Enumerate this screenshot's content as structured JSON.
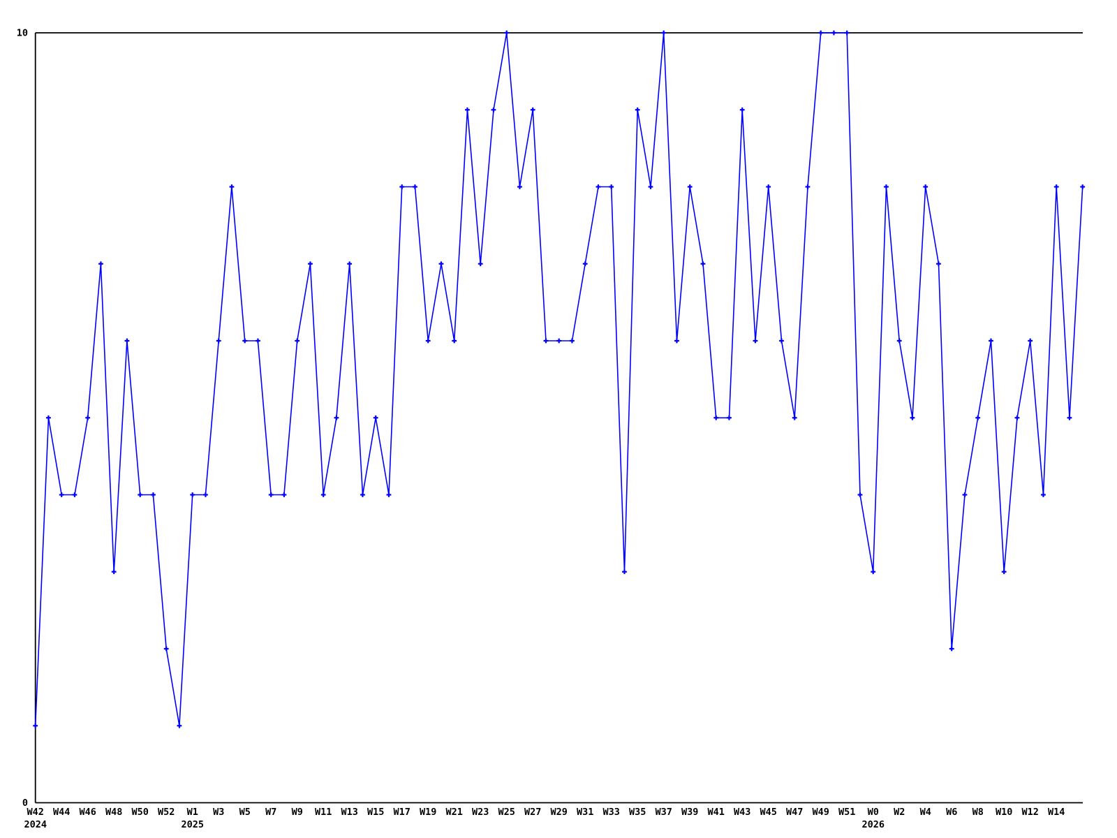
{
  "chart_data": {
    "type": "line",
    "title": "",
    "xlabel": "",
    "ylabel": "",
    "ylim": [
      0,
      10
    ],
    "grid": false,
    "legend": "none",
    "line_color": "#0000ff",
    "axis_color": "#000000",
    "background_color": "#ffffff",
    "marker_style": "plus",
    "y_tick_labels": [
      {
        "label": "0",
        "value": 0
      },
      {
        "label": "10",
        "value": 10
      }
    ],
    "x_tick_labels": [
      {
        "label": "W42",
        "index": 0,
        "year": "2024"
      },
      {
        "label": "W44",
        "index": 2
      },
      {
        "label": "W46",
        "index": 4
      },
      {
        "label": "W48",
        "index": 6
      },
      {
        "label": "W50",
        "index": 8
      },
      {
        "label": "W52",
        "index": 10
      },
      {
        "label": "W1",
        "index": 12,
        "year": "2025"
      },
      {
        "label": "W3",
        "index": 14
      },
      {
        "label": "W5",
        "index": 16
      },
      {
        "label": "W7",
        "index": 18
      },
      {
        "label": "W9",
        "index": 20
      },
      {
        "label": "W11",
        "index": 22
      },
      {
        "label": "W13",
        "index": 24
      },
      {
        "label": "W15",
        "index": 26
      },
      {
        "label": "W17",
        "index": 28
      },
      {
        "label": "W19",
        "index": 30
      },
      {
        "label": "W21",
        "index": 32
      },
      {
        "label": "W23",
        "index": 34
      },
      {
        "label": "W25",
        "index": 36
      },
      {
        "label": "W27",
        "index": 38
      },
      {
        "label": "W29",
        "index": 40
      },
      {
        "label": "W31",
        "index": 42
      },
      {
        "label": "W33",
        "index": 44
      },
      {
        "label": "W35",
        "index": 46
      },
      {
        "label": "W37",
        "index": 48
      },
      {
        "label": "W39",
        "index": 50
      },
      {
        "label": "W41",
        "index": 52
      },
      {
        "label": "W43",
        "index": 54
      },
      {
        "label": "W45",
        "index": 56
      },
      {
        "label": "W47",
        "index": 58
      },
      {
        "label": "W49",
        "index": 60
      },
      {
        "label": "W51",
        "index": 62
      },
      {
        "label": "W0",
        "index": 64,
        "year": "2026"
      },
      {
        "label": "W2",
        "index": 66
      },
      {
        "label": "W4",
        "index": 68
      },
      {
        "label": "W6",
        "index": 70
      },
      {
        "label": "W8",
        "index": 72
      },
      {
        "label": "W10",
        "index": 74
      },
      {
        "label": "W12",
        "index": 76
      },
      {
        "label": "W14",
        "index": 78
      }
    ],
    "series": [
      {
        "name": "weekly-values",
        "weeks": [
          "2024-W42",
          "2024-W43",
          "2024-W44",
          "2024-W45",
          "2024-W46",
          "2024-W47",
          "2024-W48",
          "2024-W49",
          "2024-W50",
          "2024-W51",
          "2024-W52",
          "2025-W0",
          "2025-W1",
          "2025-W2",
          "2025-W3",
          "2025-W4",
          "2025-W5",
          "2025-W6",
          "2025-W7",
          "2025-W8",
          "2025-W9",
          "2025-W10",
          "2025-W11",
          "2025-W12",
          "2025-W13",
          "2025-W14",
          "2025-W15",
          "2025-W16",
          "2025-W17",
          "2025-W18",
          "2025-W19",
          "2025-W20",
          "2025-W21",
          "2025-W22",
          "2025-W23",
          "2025-W24",
          "2025-W25",
          "2025-W26",
          "2025-W27",
          "2025-W28",
          "2025-W29",
          "2025-W30",
          "2025-W31",
          "2025-W32",
          "2025-W33",
          "2025-W34",
          "2025-W35",
          "2025-W36",
          "2025-W37",
          "2025-W38",
          "2025-W39",
          "2025-W40",
          "2025-W41",
          "2025-W42",
          "2025-W43",
          "2025-W44",
          "2025-W45",
          "2025-W46",
          "2025-W47",
          "2025-W48",
          "2025-W49",
          "2025-W50",
          "2025-W51",
          "2025-W52",
          "2026-W0",
          "2026-W1",
          "2026-W2",
          "2026-W3",
          "2026-W4",
          "2026-W5",
          "2026-W6",
          "2026-W7",
          "2026-W8",
          "2026-W9",
          "2026-W10",
          "2026-W11",
          "2026-W12",
          "2026-W13",
          "2026-W14",
          "2026-W15",
          "2026-W16"
        ],
        "values": [
          1,
          5,
          4,
          4,
          5,
          7,
          3,
          6,
          4,
          4,
          2,
          1,
          4,
          4,
          6,
          8,
          6,
          6,
          4,
          4,
          6,
          7,
          4,
          5,
          7,
          4,
          5,
          4,
          8,
          8,
          6,
          7,
          6,
          9,
          7,
          9,
          10,
          8,
          9,
          6,
          6,
          6,
          7,
          8,
          8,
          3,
          9,
          8,
          10,
          6,
          8,
          7,
          5,
          5,
          9,
          6,
          8,
          6,
          5,
          8,
          10,
          10,
          10,
          4,
          3,
          8,
          6,
          5,
          8,
          7,
          2,
          4,
          5,
          6,
          3,
          5,
          6,
          4,
          8,
          5,
          8
        ]
      }
    ]
  }
}
